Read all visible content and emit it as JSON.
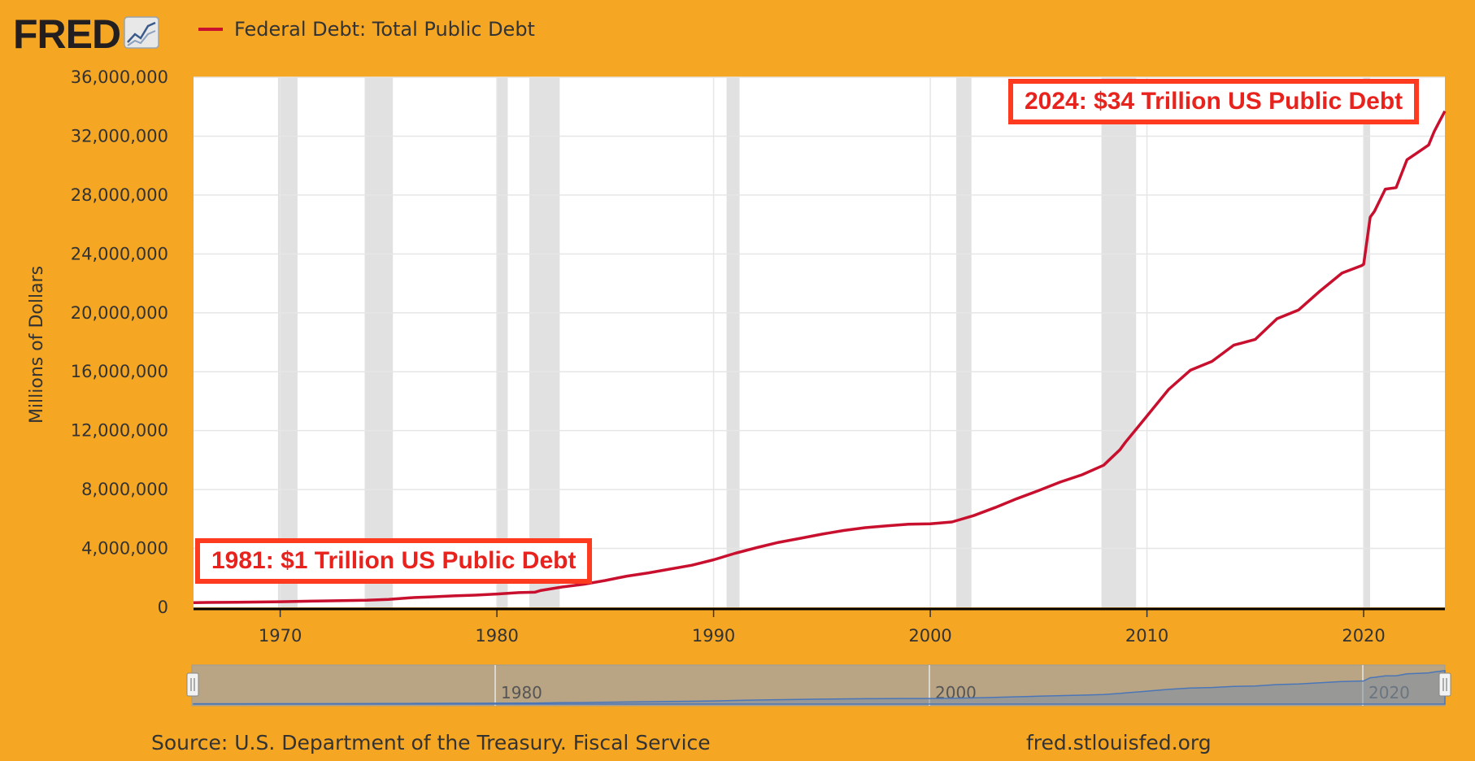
{
  "header": {
    "logo_text": "FRED",
    "logo_icon": "line-chart-icon"
  },
  "legend": {
    "label": "Federal Debt: Total Public Debt",
    "color": "#c8102e"
  },
  "annotations": {
    "left": "1981: $1 Trillion US Public Debt",
    "right": "2024: $34 Trillion US Public Debt",
    "color": "#ff3b1f"
  },
  "footer": {
    "source": "Source: U.S. Department of the Treasury. Fiscal Service",
    "site": "fred.stlouisfed.org"
  },
  "chart_data": {
    "type": "line",
    "title": "Federal Debt: Total Public Debt",
    "ylabel": "Millions of Dollars",
    "xlabel": "",
    "xlim": [
      1966.0,
      2023.75
    ],
    "ylim": [
      0,
      36000000
    ],
    "y_ticks": [
      0,
      4000000,
      8000000,
      12000000,
      16000000,
      20000000,
      24000000,
      28000000,
      32000000,
      36000000
    ],
    "y_tick_labels": [
      "0",
      "4,000,000",
      "8,000,000",
      "12,000,000",
      "16,000,000",
      "20,000,000",
      "24,000,000",
      "28,000,000",
      "32,000,000",
      "36,000,000"
    ],
    "x_ticks": [
      1970,
      1980,
      1990,
      2000,
      2010,
      2020
    ],
    "x_tick_labels": [
      "1970",
      "1980",
      "1990",
      "2000",
      "2010",
      "2020"
    ],
    "grid": true,
    "legend_position": "top",
    "recessions": [
      [
        1969.9,
        1970.8
      ],
      [
        1973.9,
        1975.2
      ],
      [
        1980.0,
        1980.5
      ],
      [
        1981.5,
        1982.9
      ],
      [
        1990.6,
        1991.2
      ],
      [
        2001.2,
        2001.9
      ],
      [
        2007.9,
        2009.5
      ],
      [
        2020.0,
        2020.3
      ]
    ],
    "series": [
      {
        "name": "Federal Debt: Total Public Debt",
        "color": "#c8102e",
        "x": [
          1966,
          1968,
          1970,
          1972,
          1974,
          1975,
          1976,
          1977,
          1978,
          1979,
          1980,
          1981,
          1981.75,
          1982,
          1983,
          1984,
          1985,
          1986,
          1987,
          1988,
          1989,
          1990,
          1991,
          1992,
          1993,
          1994,
          1995,
          1996,
          1997,
          1998,
          1999,
          2000,
          2001,
          2002,
          2003,
          2004,
          2005,
          2006,
          2007,
          2008,
          2008.75,
          2009,
          2010,
          2011,
          2012,
          2013,
          2014,
          2015,
          2016,
          2017,
          2018,
          2019,
          2019.9,
          2020.0,
          2020.3,
          2020.5,
          2021,
          2021.5,
          2022,
          2022.5,
          2023,
          2023.25,
          2023.5,
          2023.75
        ],
        "values": [
          320000,
          347000,
          380000,
          435000,
          480000,
          540000,
          650000,
          710000,
          780000,
          830000,
          908000,
          998000,
          1028000,
          1140000,
          1380000,
          1570000,
          1820000,
          2120000,
          2340000,
          2600000,
          2860000,
          3230000,
          3670000,
          4060000,
          4410000,
          4690000,
          4970000,
          5220000,
          5410000,
          5530000,
          5650000,
          5670000,
          5800000,
          6230000,
          6780000,
          7380000,
          7930000,
          8510000,
          9000000,
          9650000,
          10700000,
          11200000,
          13000000,
          14800000,
          16100000,
          16700000,
          17800000,
          18200000,
          19600000,
          20200000,
          21500000,
          22700000,
          23200000,
          23300000,
          26500000,
          26900000,
          28400000,
          28500000,
          30400000,
          30900000,
          31400000,
          32300000,
          33000000,
          33700000
        ]
      }
    ]
  },
  "navigator": {
    "x_labels": [
      "1980",
      "2000",
      "2020"
    ],
    "handle_left": "resize-handle-left",
    "handle_right": "resize-handle-right"
  }
}
